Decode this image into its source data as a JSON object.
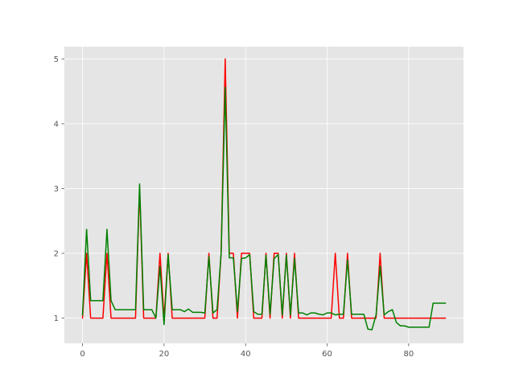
{
  "chart_data": {
    "type": "line",
    "title": "",
    "xlabel": "",
    "ylabel": "",
    "xlim": [
      -4.45,
      93.45
    ],
    "ylim": [
      0.61,
      5.19
    ],
    "x_ticks": [
      0,
      20,
      40,
      60,
      80
    ],
    "y_ticks": [
      1,
      2,
      3,
      4,
      5
    ],
    "grid": true,
    "background": "#e5e5e5",
    "series": [
      {
        "color": "#ff0000",
        "x": [
          0,
          1,
          2,
          3,
          4,
          5,
          6,
          7,
          8,
          9,
          10,
          11,
          12,
          13,
          14,
          15,
          16,
          17,
          18,
          19,
          20,
          21,
          22,
          23,
          24,
          25,
          26,
          27,
          28,
          29,
          30,
          31,
          32,
          33,
          34,
          35,
          36,
          37,
          38,
          39,
          40,
          41,
          42,
          43,
          44,
          45,
          46,
          47,
          48,
          49,
          50,
          51,
          52,
          53,
          54,
          55,
          56,
          57,
          58,
          59,
          60,
          61,
          62,
          63,
          64,
          65,
          66,
          67,
          68,
          69,
          70,
          71,
          72,
          73,
          74,
          75,
          76,
          77,
          78,
          79,
          80,
          81,
          82,
          83,
          84,
          85,
          86,
          87,
          88,
          89
        ],
        "y": [
          1,
          2,
          1,
          1,
          1,
          1,
          2,
          1,
          1,
          1,
          1,
          1,
          1,
          1,
          3,
          1,
          1,
          1,
          1,
          2,
          1,
          2,
          1,
          1,
          1,
          1,
          1,
          1,
          1,
          1,
          1,
          2,
          1,
          1,
          2,
          5,
          2,
          2,
          1,
          2,
          2,
          2,
          1,
          1,
          1,
          2,
          1,
          2,
          2,
          1,
          2,
          1,
          2,
          1,
          1,
          1,
          1,
          1,
          1,
          1,
          1,
          1,
          2,
          1,
          1,
          2,
          1,
          1,
          1,
          1,
          1,
          1,
          1,
          2,
          1,
          1,
          1,
          1,
          1,
          1,
          1,
          1,
          1,
          1,
          1,
          1,
          1,
          1,
          1,
          1
        ]
      },
      {
        "color": "#008000",
        "x": [
          0,
          1,
          2,
          3,
          4,
          5,
          6,
          7,
          8,
          9,
          10,
          11,
          12,
          13,
          14,
          15,
          16,
          17,
          18,
          19,
          20,
          21,
          22,
          23,
          24,
          25,
          26,
          27,
          28,
          29,
          30,
          31,
          32,
          33,
          34,
          35,
          36,
          37,
          38,
          39,
          40,
          41,
          42,
          43,
          44,
          45,
          46,
          47,
          48,
          49,
          50,
          51,
          52,
          53,
          54,
          55,
          56,
          57,
          58,
          59,
          60,
          61,
          62,
          63,
          64,
          65,
          66,
          67,
          68,
          69,
          70,
          71,
          72,
          73,
          74,
          75,
          76,
          77,
          78,
          79,
          80,
          81,
          82,
          83,
          84,
          85,
          86,
          87,
          88,
          89
        ],
        "y": [
          1.05,
          2.37,
          1.27,
          1.27,
          1.27,
          1.27,
          2.37,
          1.27,
          1.13,
          1.13,
          1.13,
          1.13,
          1.13,
          1.13,
          3.07,
          1.13,
          1.13,
          1.13,
          1.0,
          1.8,
          0.9,
          1.98,
          1.13,
          1.13,
          1.13,
          1.1,
          1.14,
          1.09,
          1.09,
          1.09,
          1.08,
          1.95,
          1.08,
          1.13,
          2.0,
          4.56,
          1.93,
          1.93,
          1.1,
          1.92,
          1.93,
          1.98,
          1.1,
          1.06,
          1.06,
          1.97,
          1.06,
          1.92,
          1.98,
          1.05,
          1.97,
          1.05,
          1.92,
          1.08,
          1.08,
          1.05,
          1.08,
          1.08,
          1.06,
          1.05,
          1.08,
          1.08,
          1.05,
          1.06,
          1.06,
          1.9,
          1.06,
          1.06,
          1.06,
          1.06,
          0.83,
          0.82,
          1.05,
          1.8,
          1.05,
          1.1,
          1.13,
          0.93,
          0.88,
          0.88,
          0.86,
          0.86,
          0.86,
          0.86,
          0.86,
          0.86,
          1.23,
          1.23,
          1.23,
          1.23
        ]
      }
    ]
  }
}
